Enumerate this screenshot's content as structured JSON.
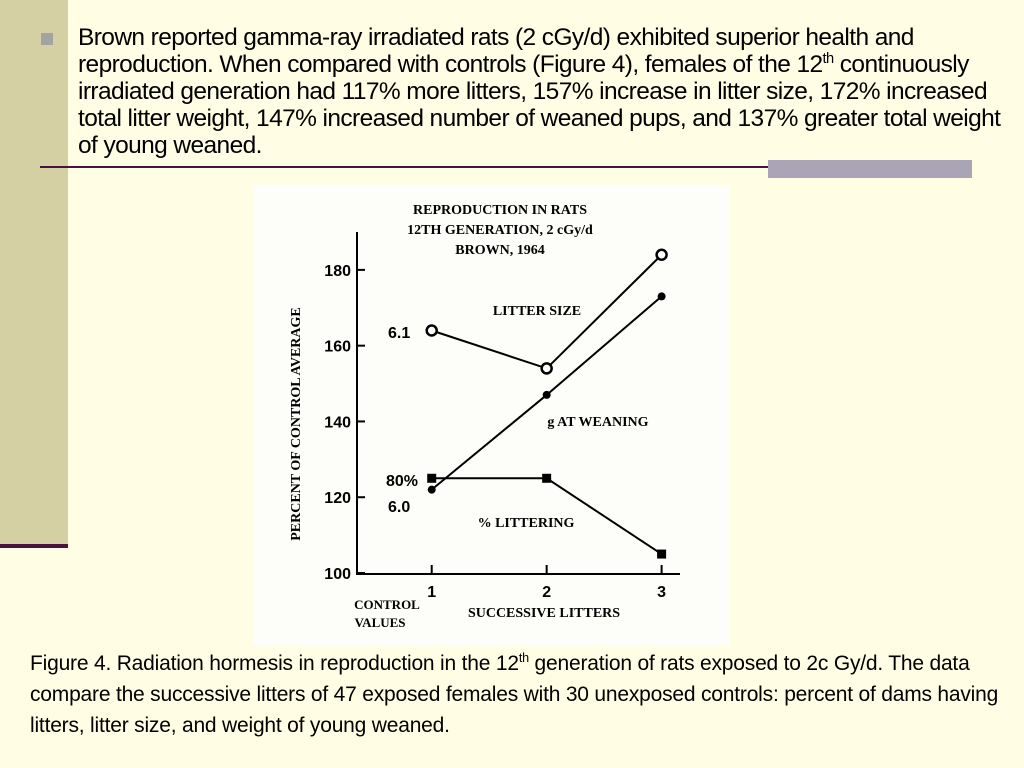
{
  "bullet": [
    "Brown reported gamma-ray irradiated rats (2 cGy/d) exhibited superior health and reproduction. When compared with controls (Figure 4), females of the 12",
    "th",
    "  continuously irradiated generation had 117% more litters, 157% increase in litter size, 172% increased total litter weight, 147% increased number of weaned pups, and 137% greater total weight of young weaned."
  ],
  "caption": [
    "Figure 4. Radiation hormesis in reproduction in the 12",
    "th",
    "  generation of rats exposed to 2c Gy/d. The data compare the successive litters of 47 exposed females with 30 unexposed controls: percent of dams having litters, litter size, and weight of young weaned."
  ],
  "chart_data": {
    "type": "line",
    "title": [
      "REPRODUCTION IN RATS",
      "12TH GENERATION, 2 cGy/d",
      "BROWN, 1964"
    ],
    "y_label": "PERCENT OF CONTROL AVERAGE",
    "x_label": "SUCCESSIVE LITTERS",
    "x": [
      1,
      2,
      3
    ],
    "xlim": [
      0.35,
      3.16
    ],
    "xticks": [
      1,
      2,
      3
    ],
    "ylim": [
      100,
      190
    ],
    "yticks": [
      100,
      120,
      140,
      160,
      180
    ],
    "series": [
      {
        "name": "LITTER SIZE",
        "color": "#000000",
        "marker": "open-circle",
        "values": [
          164,
          154,
          184
        ]
      },
      {
        "name": "g AT WEANING",
        "color": "#000000",
        "marker": "circle",
        "values": [
          122,
          147,
          173
        ]
      },
      {
        "name": "% LITTERING",
        "color": "#000000",
        "marker": "square",
        "values": [
          125,
          125,
          105
        ]
      }
    ],
    "annotations": [
      "6.1",
      "80%",
      "6.0",
      "CONTROL",
      "VALUES"
    ]
  }
}
